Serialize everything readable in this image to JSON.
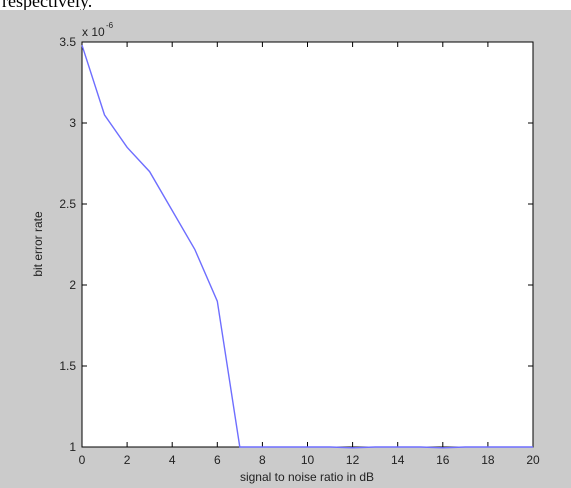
{
  "document": {
    "caption_fragment": "respectively."
  },
  "chart_data": {
    "type": "line",
    "title": "",
    "xlabel": "signal to noise ratio in dB",
    "ylabel": "bit error rate",
    "y_exponent_label": "x 10",
    "y_exponent": "-6",
    "xlim": [
      0,
      20
    ],
    "ylim": [
      1,
      3.5
    ],
    "xticks": [
      0,
      2,
      4,
      6,
      8,
      10,
      12,
      14,
      16,
      18,
      20
    ],
    "yticks": [
      1,
      1.5,
      2,
      2.5,
      3,
      3.5
    ],
    "grid": false,
    "colors": {
      "line": "#6e6eff",
      "figure_bg": "#cbcbcb",
      "axes_bg": "#ffffff"
    },
    "series": [
      {
        "x": [
          0,
          1,
          2,
          3,
          4,
          5,
          6,
          7,
          8,
          9,
          10,
          11,
          12,
          13,
          14,
          15,
          16,
          17,
          18,
          19,
          20
        ],
        "y": [
          3.48,
          3.05,
          2.85,
          2.7,
          2.46,
          2.22,
          1.9,
          1.0,
          1.0,
          1.0,
          1.0,
          1.0,
          0.995,
          1.0,
          1.0,
          1.0,
          0.995,
          1.0,
          1.0,
          1.0,
          1.0
        ]
      }
    ]
  }
}
